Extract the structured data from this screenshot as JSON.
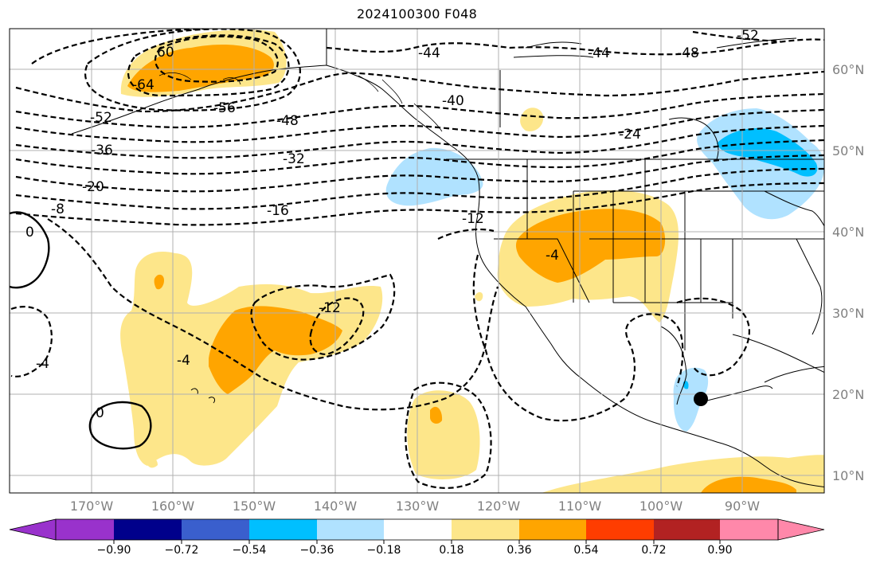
{
  "title": "2024100300 F048",
  "lat_labels": [
    {
      "text": "60°N",
      "lat": 60
    },
    {
      "text": "50°N",
      "lat": 50
    },
    {
      "text": "40°N",
      "lat": 40
    },
    {
      "text": "30°N",
      "lat": 30
    },
    {
      "text": "20°N",
      "lat": 20
    },
    {
      "text": "10°N",
      "lat": 10
    }
  ],
  "lon_labels": [
    {
      "text": "170°W",
      "lon": -170
    },
    {
      "text": "160°W",
      "lon": -160
    },
    {
      "text": "150°W",
      "lon": -150
    },
    {
      "text": "140°W",
      "lon": -140
    },
    {
      "text": "130°W",
      "lon": -130
    },
    {
      "text": "120°W",
      "lon": -120
    },
    {
      "text": "110°W",
      "lon": -110
    },
    {
      "text": "100°W",
      "lon": -100
    },
    {
      "text": "90°W",
      "lon": -90
    }
  ],
  "contour_labels": [
    "60",
    "-64",
    "-56",
    "-52",
    "-36",
    "-20",
    "-8",
    "0",
    "-48",
    "-32",
    "-16",
    "-44",
    "-40",
    "-44",
    "-48",
    "-52",
    "-24",
    "-12",
    "-4",
    "-12",
    "-4",
    "-4",
    "0"
  ],
  "colorbar": {
    "ticks": [
      "−0.90",
      "−0.72",
      "−0.54",
      "−0.36",
      "−0.18",
      "0.18",
      "0.36",
      "0.54",
      "0.72",
      "0.90"
    ],
    "colors": [
      "#9932cc",
      "#00008b",
      "#3a5fcd",
      "#00bfff",
      "#b0e2ff",
      "#ffffff",
      "#fde68a",
      "#ffa500",
      "#ff3d00",
      "#b22222",
      "#ff88aa"
    ]
  },
  "marker": {
    "label": "storm-center",
    "lat": 19.5,
    "lon": -95
  }
}
